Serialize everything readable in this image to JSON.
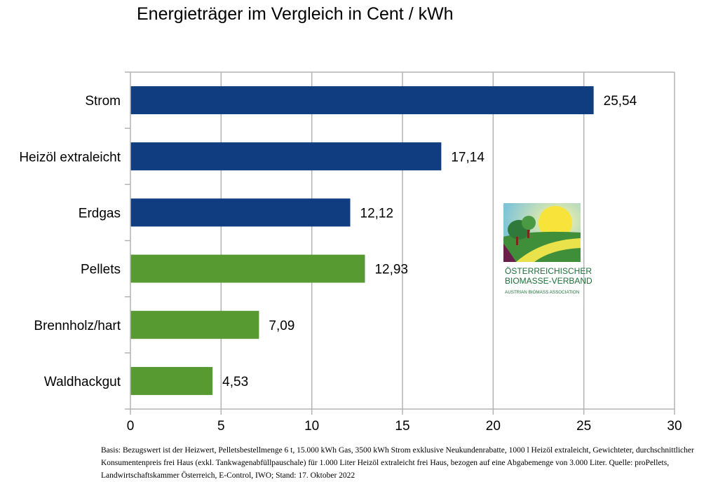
{
  "chart_data": {
    "type": "bar",
    "orientation": "horizontal",
    "title": "Energieträger im Vergleich in Cent / kWh",
    "categories": [
      "Strom",
      "Heizöl extraleicht",
      "Erdgas",
      "Pellets",
      "Brennholz/hart",
      "Waldhackgut"
    ],
    "values": [
      25.54,
      17.14,
      12.12,
      12.93,
      7.09,
      4.53
    ],
    "value_labels": [
      "25,54",
      "17,14",
      "12,12",
      "12,93",
      "7,09",
      "4,53"
    ],
    "bar_colors": [
      "#0f3d80",
      "#0f3d80",
      "#0f3d80",
      "#569a31",
      "#569a31",
      "#569a31"
    ],
    "xlim": [
      0,
      30
    ],
    "xticks": [
      "0",
      "5",
      "10",
      "15",
      "20",
      "25",
      "30"
    ],
    "grid": "vertical",
    "xlabel": "",
    "ylabel": ""
  },
  "logo": {
    "line1": "Österreichischer",
    "line2": "Biomasse-Verband",
    "line3": "Austrian Biomass Association"
  },
  "footnote": "Basis: Bezugswert ist der Heizwert, Pelletsbestellmenge 6 t, 15.000 kWh Gas, 3500 kWh Strom exklusive Neukundenrabatte, 1000 l Heizöl extraleicht, Gewichteter, durchschnittlicher Konsumentenpreis frei Haus (exkl. Tankwagenabfüllpauschale) für 1.000 Liter Heizöl extraleicht frei Haus, bezogen auf eine Abgabemenge von 3.000 Liter. Quelle: proPellets, Landwirtschaftskammer Österreich, E-Control, IWO; Stand: 17. Oktober 2022"
}
